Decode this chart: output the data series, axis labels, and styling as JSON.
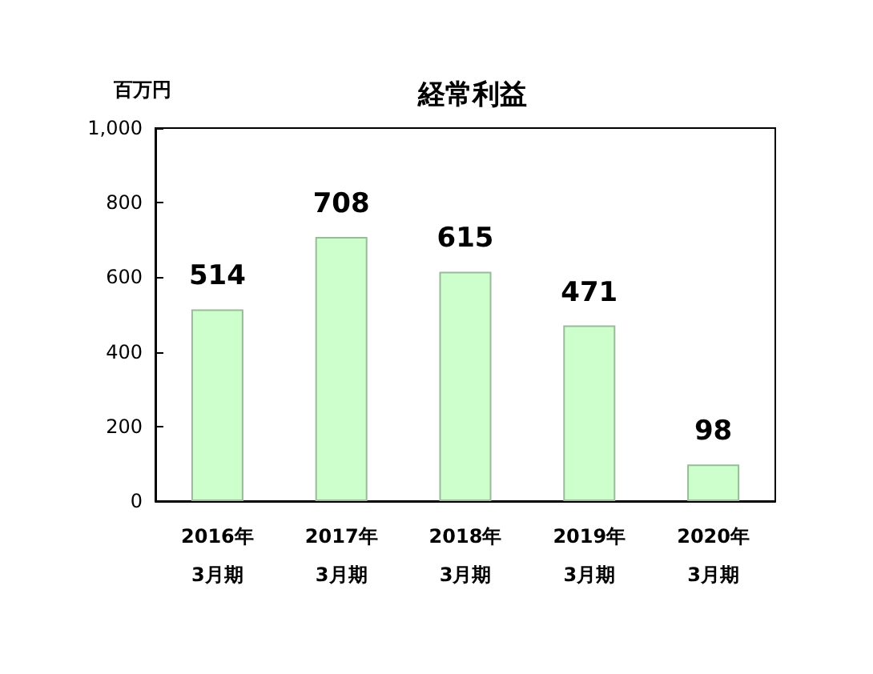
{
  "chart_data": {
    "type": "bar",
    "title": "経常利益",
    "ylabel": "百万円",
    "categories": [
      "2016年\n3月期",
      "2017年\n3月期",
      "2018年\n3月期",
      "2019年\n3月期",
      "2020年\n3月期"
    ],
    "values": [
      514,
      708,
      615,
      471,
      98
    ],
    "color": "#ccffcc",
    "ylim": [
      0,
      1000
    ],
    "yticks": [
      0,
      200,
      400,
      600,
      800,
      {
        "value": 1000,
        "label": "1,000"
      }
    ],
    "data_labels": true
  }
}
